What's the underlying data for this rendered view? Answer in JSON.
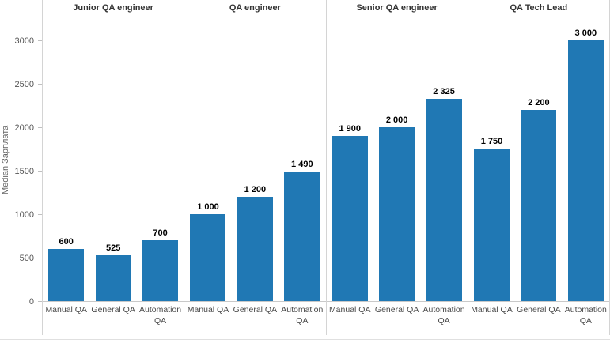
{
  "colors": {
    "bar": "#2078B4",
    "panel_border": "#d4d4d4",
    "axis_line": "#c9c9c9",
    "tick_mark": "#c0c0c0",
    "tick_label": "#555555",
    "header_text": "#333333",
    "value_label": "#000000",
    "category_label": "#4a4a4a",
    "axis_title": "#666666",
    "bottom_rule": "#e0e0e0"
  },
  "chart_data": {
    "type": "bar",
    "title": "",
    "xlabel": "",
    "ylabel": "Median Зарплата",
    "ylim": [
      0,
      3000
    ],
    "y_ticks": [
      0,
      500,
      1000,
      1500,
      2000,
      2500,
      3000
    ],
    "grid": false,
    "legend": "none",
    "categories": [
      "Manual QA",
      "General QA",
      "Automation QA"
    ],
    "panels": [
      {
        "label": "Junior QA engineer",
        "values": [
          600,
          525,
          700
        ],
        "value_labels": [
          "600",
          "525",
          "700"
        ]
      },
      {
        "label": "QA engineer",
        "values": [
          1000,
          1200,
          1490
        ],
        "value_labels": [
          "1 000",
          "1 200",
          "1 490"
        ]
      },
      {
        "label": "Senior QA engineer",
        "values": [
          1900,
          2000,
          2325
        ],
        "value_labels": [
          "1 900",
          "2 000",
          "2 325"
        ]
      },
      {
        "label": "QA Tech Lead",
        "values": [
          1750,
          2200,
          3000
        ],
        "value_labels": [
          "1 750",
          "2 200",
          "3 000"
        ]
      }
    ]
  }
}
